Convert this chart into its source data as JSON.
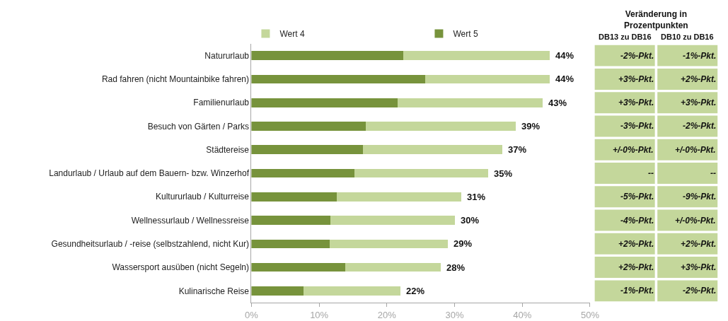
{
  "chart_data": [
    {
      "type": "bar",
      "orientation": "horizontal",
      "stacked": true,
      "legend": "top left",
      "categories": [
        "Natururlaub",
        "Rad fahren (nicht Mountainbike fahren)",
        "Familienurlaub",
        "Besuch von Gärten / Parks",
        "Städtereise",
        "Landurlaub / Urlaub auf dem Bauern- bzw. Winzerhof",
        "Kultururlaub / Kulturreise",
        "Wellnessurlaub / Wellnessreise",
        "Gesundheitsurlaub / -reise (selbstzahlend, nicht Kur)",
        "Wassersport ausüben (nicht Segeln)",
        "Kulinarische Reise"
      ],
      "series": [
        {
          "name": "Wert 5",
          "color": "#77933c",
          "values": [
            22.4,
            25.7,
            21.6,
            16.9,
            16.5,
            15.2,
            12.6,
            11.7,
            11.5,
            13.8,
            7.7
          ]
        },
        {
          "name": "Wert 4",
          "color": "#c4d79b",
          "values": [
            21.6,
            18.3,
            21.4,
            22.1,
            20.5,
            19.8,
            18.4,
            18.3,
            17.5,
            14.2,
            14.3
          ]
        }
      ],
      "totals": [
        "44%",
        "44%",
        "43%",
        "39%",
        "37%",
        "35%",
        "31%",
        "30%",
        "29%",
        "28%",
        "22%"
      ],
      "xlim": [
        0,
        50
      ],
      "xticks": [
        {
          "value": 0,
          "label": "0%"
        },
        {
          "value": 10,
          "label": "10%"
        },
        {
          "value": 20,
          "label": "20%"
        },
        {
          "value": 30,
          "label": "30%"
        },
        {
          "value": 40,
          "label": "40%"
        },
        {
          "value": 50,
          "label": "50%"
        }
      ]
    },
    {
      "type": "other",
      "title": "Veränderung in Prozentpunkten",
      "categories": [
        "DB13 zu DB16",
        "DB10 zu DB16"
      ],
      "color": "#c4d79b",
      "cell_labels": [
        [
          "-2%-Pkt.",
          "-1%-Pkt."
        ],
        [
          "+3%-Pkt.",
          "+2%-Pkt."
        ],
        [
          "+3%-Pkt.",
          "+3%-Pkt."
        ],
        [
          "-3%-Pkt.",
          "-2%-Pkt."
        ],
        [
          "+/-0%-Pkt.",
          "+/-0%-Pkt."
        ],
        [
          "--",
          "--"
        ],
        [
          "-5%-Pkt.",
          "-9%-Pkt."
        ],
        [
          "-4%-Pkt.",
          "+/-0%-Pkt."
        ],
        [
          "+2%-Pkt.",
          "+2%-Pkt."
        ],
        [
          "+2%-Pkt.",
          "+3%-Pkt."
        ],
        [
          "-1%-Pkt.",
          "-2%-Pkt."
        ]
      ]
    }
  ]
}
